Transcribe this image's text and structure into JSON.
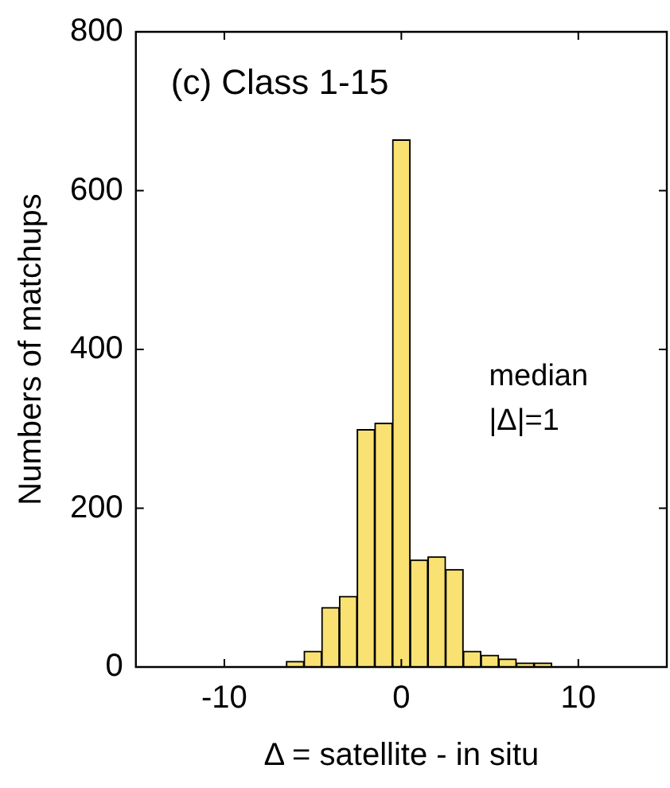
{
  "chart_data": {
    "type": "histogram",
    "title": "(c) Class 1-15",
    "xlabel": "Δ = satellite - in situ",
    "ylabel": "Numbers of matchups",
    "bins": [
      -6.5,
      -5.5,
      -4.5,
      -3.5,
      -2.5,
      -1.5,
      -0.5,
      0.5,
      1.5,
      2.5,
      3.5,
      4.5,
      5.5,
      6.5,
      7.5,
      8.5
    ],
    "values": [
      7,
      20,
      75,
      89,
      299,
      307,
      664,
      135,
      139,
      123,
      20,
      15,
      10,
      5,
      5
    ],
    "color": "#f9e272",
    "xlim": [
      -15,
      15
    ],
    "xticks": [
      -10,
      0,
      10
    ],
    "ylim": [
      0,
      800
    ],
    "yticks": [
      0,
      200,
      400,
      600,
      800
    ],
    "grid": false,
    "legend": false,
    "annotations": [
      "median\n|Δ|=1"
    ]
  }
}
